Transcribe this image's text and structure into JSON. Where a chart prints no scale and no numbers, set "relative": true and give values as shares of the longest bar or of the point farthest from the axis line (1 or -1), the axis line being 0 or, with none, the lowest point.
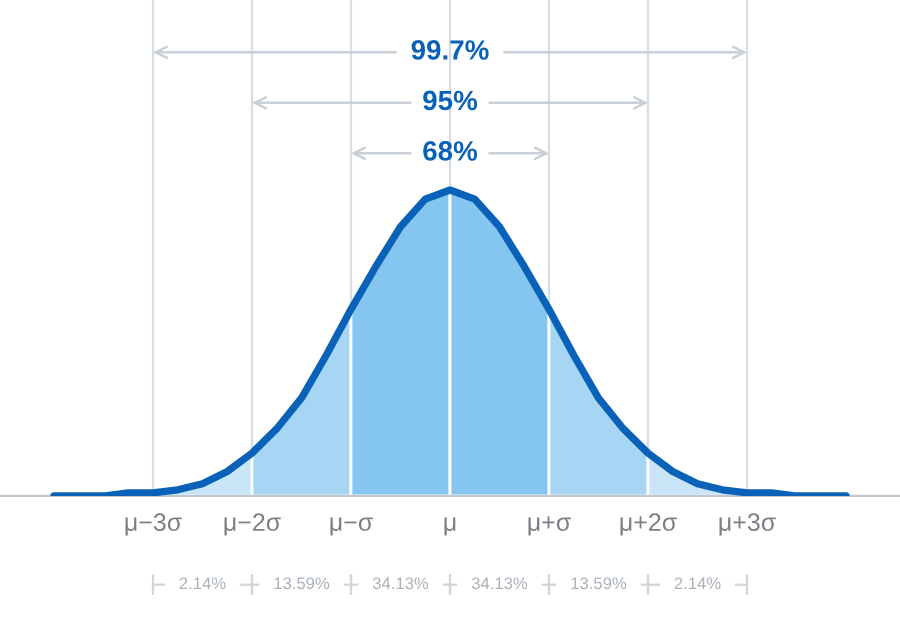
{
  "chart_data": {
    "type": "area",
    "relative": true,
    "grid": "x",
    "categories": [
      null,
      null,
      null,
      null,
      "μ−3σ",
      null,
      null,
      null,
      "μ−2σ",
      null,
      null,
      null,
      "μ−σ",
      null,
      null,
      null,
      "μ",
      null,
      null,
      null,
      "μ+σ",
      null,
      null,
      null,
      "μ+2σ",
      null,
      null,
      null,
      "μ+3σ",
      null,
      null,
      null,
      null
    ],
    "series": [
      {
        "color": "#c9e6f8",
        "values": [
          null,
          null,
          null,
          null,
          0.01,
          0.02,
          0.04,
          0.08,
          0.14,
          null,
          null,
          null,
          null,
          null,
          null,
          null,
          null,
          null,
          null,
          null,
          null,
          null,
          null,
          null,
          null,
          null,
          null,
          null,
          null,
          null,
          null,
          null,
          null
        ]
      },
      {
        "color": "#a6d6f4",
        "values": [
          null,
          null,
          null,
          null,
          null,
          null,
          null,
          null,
          0.14,
          0.22,
          0.32,
          0.46,
          0.61,
          null,
          null,
          null,
          null,
          null,
          null,
          null,
          null,
          null,
          null,
          null,
          null,
          null,
          null,
          null,
          null,
          null,
          null,
          null,
          null
        ]
      },
      {
        "color": "#84c6ef",
        "values": [
          null,
          null,
          null,
          null,
          null,
          null,
          null,
          null,
          null,
          null,
          null,
          null,
          0.61,
          0.75,
          0.88,
          0.97,
          1,
          null,
          null,
          null,
          null,
          null,
          null,
          null,
          null,
          null,
          null,
          null,
          null,
          null,
          null,
          null,
          null
        ]
      },
      {
        "color": "#84c6ef",
        "values": [
          null,
          null,
          null,
          null,
          null,
          null,
          null,
          null,
          null,
          null,
          null,
          null,
          null,
          null,
          null,
          null,
          1,
          0.97,
          0.88,
          0.75,
          0.61,
          null,
          null,
          null,
          null,
          null,
          null,
          null,
          null,
          null,
          null,
          null,
          null
        ]
      },
      {
        "color": "#a6d6f4",
        "values": [
          null,
          null,
          null,
          null,
          null,
          null,
          null,
          null,
          null,
          null,
          null,
          null,
          null,
          null,
          null,
          null,
          null,
          null,
          null,
          null,
          0.61,
          0.46,
          0.32,
          0.22,
          0.14,
          null,
          null,
          null,
          null,
          null,
          null,
          null,
          null
        ]
      },
      {
        "color": "#c9e6f8",
        "values": [
          null,
          null,
          null,
          null,
          null,
          null,
          null,
          null,
          null,
          null,
          null,
          null,
          null,
          null,
          null,
          null,
          null,
          null,
          null,
          null,
          null,
          null,
          null,
          null,
          0.14,
          0.08,
          0.04,
          0.02,
          0.01,
          null,
          null,
          null,
          null
        ]
      },
      {
        "type": "line",
        "color": "#0a62b8",
        "values": [
          0,
          0,
          0,
          0.01,
          0.01,
          0.02,
          0.04,
          0.08,
          0.14,
          0.22,
          0.32,
          0.46,
          0.61,
          0.75,
          0.88,
          0.97,
          1,
          0.97,
          0.88,
          0.75,
          0.61,
          0.46,
          0.32,
          0.22,
          0.14,
          0.08,
          0.04,
          0.02,
          0.01,
          0.01,
          0,
          0,
          0
        ]
      }
    ],
    "annotations": [
      "99.7%",
      "95%",
      "68%",
      "2.14%",
      "13.59%",
      "34.13%",
      "34.13%",
      "13.59%",
      "2.14%"
    ]
  }
}
